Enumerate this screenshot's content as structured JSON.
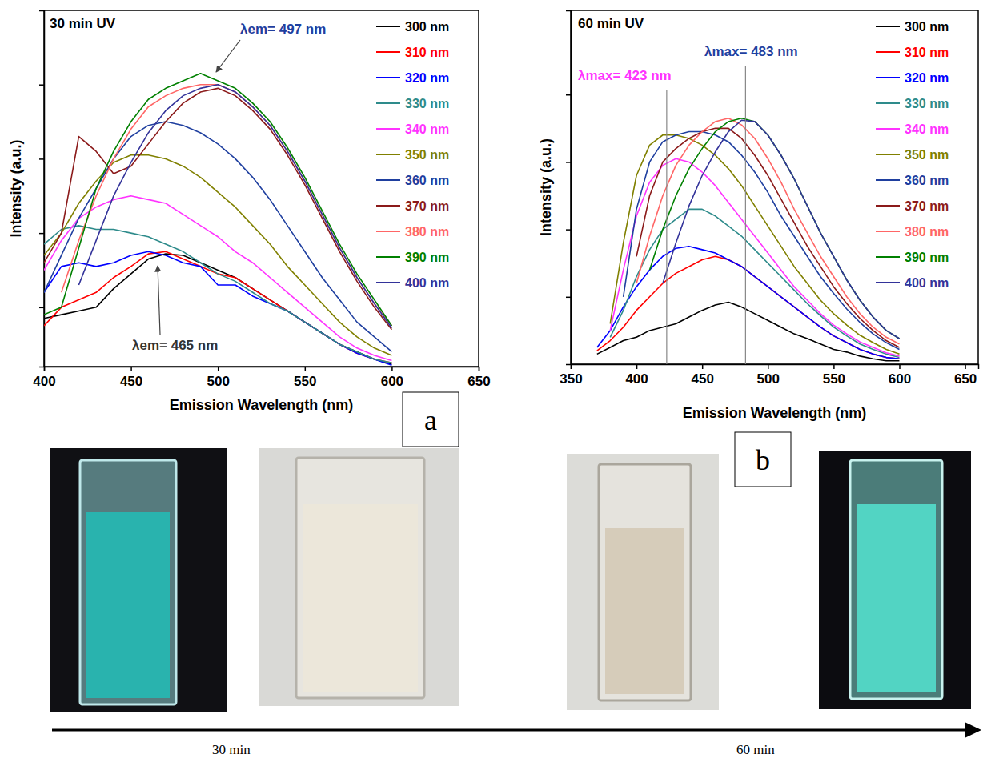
{
  "chart_data": [
    {
      "type": "line",
      "panel_label": "a",
      "x_label": "Emission Wavelength (nm)",
      "y_label": "Intensity (a.u.)",
      "xlim": [
        400,
        650
      ],
      "xticks": [
        400,
        450,
        500,
        550,
        600,
        650
      ],
      "ylim": [
        0.2,
        5
      ],
      "yticks": [
        1,
        2,
        3,
        4
      ],
      "tick_labels": "x",
      "legend": "upper right",
      "annotations": [
        {
          "text": "30 min UV"
        },
        {
          "text": "λem= 497 nm",
          "color": "#1f3f9f"
        },
        {
          "text": "λem= 465 nm",
          "color": "#333333"
        }
      ],
      "x": [
        400,
        410,
        420,
        430,
        440,
        450,
        460,
        470,
        480,
        490,
        500,
        510,
        520,
        530,
        540,
        550,
        560,
        570,
        580,
        590,
        600
      ],
      "series": [
        {
          "name": "300 nm",
          "color": "#000000",
          "values": [
            0.85,
            0.9,
            0.95,
            1.0,
            1.25,
            1.45,
            1.65,
            1.72,
            1.7,
            1.6,
            1.5,
            1.4,
            1.25,
            1.1,
            0.95,
            0.8,
            0.65,
            0.5,
            0.4,
            0.3,
            0.23
          ]
        },
        {
          "name": "310 nm",
          "color": "#ff0000",
          "values": [
            0.75,
            1.0,
            1.1,
            1.2,
            1.4,
            1.55,
            1.72,
            1.75,
            1.65,
            1.55,
            1.45,
            1.4,
            1.25,
            1.1,
            0.95,
            0.8,
            0.65,
            0.5,
            0.38,
            0.3,
            0.25
          ]
        },
        {
          "name": "320 nm",
          "color": "#0000ff",
          "values": [
            1.2,
            1.55,
            1.6,
            1.55,
            1.6,
            1.7,
            1.75,
            1.7,
            1.6,
            1.55,
            1.3,
            1.3,
            1.15,
            1.05,
            0.95,
            0.8,
            0.65,
            0.5,
            0.38,
            0.3,
            0.22
          ]
        },
        {
          "name": "330 nm",
          "color": "#2e8b8b",
          "values": [
            1.85,
            2.05,
            2.1,
            2.05,
            2.05,
            2.0,
            1.95,
            1.85,
            1.75,
            1.6,
            1.45,
            1.35,
            1.2,
            1.05,
            0.95,
            0.8,
            0.65,
            0.5,
            0.4,
            0.3,
            0.25
          ]
        },
        {
          "name": "340 nm",
          "color": "#ff33ff",
          "values": [
            1.5,
            1.9,
            2.2,
            2.35,
            2.45,
            2.5,
            2.45,
            2.4,
            2.25,
            2.1,
            1.95,
            1.75,
            1.6,
            1.4,
            1.2,
            1.0,
            0.8,
            0.6,
            0.45,
            0.35,
            0.28
          ]
        },
        {
          "name": "350 nm",
          "color": "#808000",
          "values": [
            1.7,
            2.0,
            2.4,
            2.7,
            2.95,
            3.05,
            3.05,
            3.0,
            2.9,
            2.75,
            2.55,
            2.35,
            2.1,
            1.85,
            1.55,
            1.3,
            1.05,
            0.8,
            0.6,
            0.45,
            0.35
          ]
        },
        {
          "name": "360 nm",
          "color": "#1f3f9f",
          "values": [
            1.2,
            1.7,
            2.2,
            2.6,
            3.0,
            3.3,
            3.45,
            3.5,
            3.45,
            3.35,
            3.2,
            3.0,
            2.75,
            2.45,
            2.1,
            1.75,
            1.4,
            1.1,
            0.8,
            0.6,
            0.4
          ]
        },
        {
          "name": "370 nm",
          "color": "#8b1a1a",
          "values": [
            1.6,
            2.0,
            3.3,
            3.1,
            2.8,
            2.9,
            3.2,
            3.5,
            3.75,
            3.9,
            3.95,
            3.85,
            3.65,
            3.4,
            3.05,
            2.65,
            2.2,
            1.75,
            1.35,
            1.0,
            0.7
          ]
        },
        {
          "name": "380 nm",
          "color": "#ff6666",
          "values": [
            null,
            1.2,
            1.9,
            2.5,
            3.0,
            3.4,
            3.7,
            3.85,
            3.95,
            4.0,
            4.0,
            3.9,
            3.7,
            3.45,
            3.1,
            2.7,
            2.25,
            1.8,
            1.4,
            1.05,
            0.75
          ]
        },
        {
          "name": "390 nm",
          "color": "#008000",
          "values": [
            0.9,
            1.0,
            1.8,
            2.6,
            3.1,
            3.5,
            3.8,
            3.95,
            4.05,
            4.15,
            4.05,
            3.95,
            3.75,
            3.5,
            3.15,
            2.75,
            2.3,
            1.85,
            1.45,
            1.1,
            0.75
          ]
        },
        {
          "name": "400 nm",
          "color": "#33339a",
          "values": [
            null,
            null,
            1.3,
            1.9,
            2.5,
            2.95,
            3.35,
            3.65,
            3.85,
            3.95,
            4.0,
            3.9,
            3.7,
            3.45,
            3.1,
            2.7,
            2.25,
            1.8,
            1.4,
            1.05,
            0.72
          ]
        }
      ]
    },
    {
      "type": "line",
      "panel_label": "b",
      "x_label": "Emission Wavelength (nm)",
      "y_label": "Intensity (a.u.)",
      "xlim": [
        350,
        660
      ],
      "xticks": [
        350,
        400,
        450,
        500,
        550,
        600,
        650
      ],
      "ylim": [
        0,
        5.25
      ],
      "yticks": [
        1,
        2,
        3,
        4
      ],
      "tick_labels": "x",
      "legend": "upper right",
      "annotations": [
        {
          "text": "60 min UV"
        },
        {
          "text": "λmax= 423 nm",
          "x": 423,
          "color": "#ff33ff"
        },
        {
          "text": "λmax= 483 nm",
          "x": 483,
          "color": "#1f3f9f"
        }
      ],
      "x": [
        370,
        380,
        390,
        400,
        410,
        420,
        430,
        440,
        450,
        460,
        470,
        480,
        490,
        500,
        510,
        520,
        530,
        540,
        550,
        560,
        570,
        580,
        590,
        600
      ],
      "series": [
        {
          "name": "300 nm",
          "color": "#000000",
          "values": [
            0.15,
            0.25,
            0.35,
            0.4,
            0.5,
            0.55,
            0.6,
            0.7,
            0.8,
            0.88,
            0.92,
            0.85,
            0.75,
            0.65,
            0.55,
            0.45,
            0.38,
            0.3,
            0.22,
            0.18,
            0.12,
            0.08,
            0.05,
            0.05
          ]
        },
        {
          "name": "310 nm",
          "color": "#ff0000",
          "values": [
            0.2,
            0.35,
            0.55,
            0.8,
            1.0,
            1.2,
            1.35,
            1.45,
            1.55,
            1.6,
            1.55,
            1.45,
            1.3,
            1.15,
            1.0,
            0.85,
            0.7,
            0.55,
            0.42,
            0.32,
            0.22,
            0.15,
            0.1,
            0.08
          ]
        },
        {
          "name": "320 nm",
          "color": "#0000ff",
          "values": [
            0.25,
            0.5,
            0.85,
            1.15,
            1.4,
            1.6,
            1.72,
            1.75,
            1.7,
            1.65,
            1.55,
            1.45,
            1.3,
            1.15,
            1.0,
            0.85,
            0.7,
            0.55,
            0.42,
            0.32,
            0.22,
            0.15,
            0.1,
            0.08
          ]
        },
        {
          "name": "330 nm",
          "color": "#2e8b8b",
          "values": [
            null,
            0.4,
            0.8,
            1.3,
            1.7,
            2.0,
            2.15,
            2.3,
            2.3,
            2.2,
            2.05,
            1.9,
            1.7,
            1.5,
            1.3,
            1.1,
            0.9,
            0.72,
            0.55,
            0.42,
            0.3,
            0.22,
            0.15,
            0.1
          ]
        },
        {
          "name": "340 nm",
          "color": "#ff33ff",
          "values": [
            null,
            0.5,
            1.4,
            2.2,
            2.7,
            2.95,
            3.05,
            3.0,
            2.85,
            2.65,
            2.4,
            2.15,
            1.9,
            1.65,
            1.4,
            1.15,
            0.95,
            0.75,
            0.58,
            0.45,
            0.33,
            0.25,
            0.17,
            0.12
          ]
        },
        {
          "name": "350 nm",
          "color": "#808000",
          "values": [
            null,
            0.6,
            1.8,
            2.8,
            3.25,
            3.4,
            3.4,
            3.35,
            3.25,
            3.1,
            2.9,
            2.65,
            2.35,
            2.05,
            1.75,
            1.45,
            1.2,
            0.95,
            0.75,
            0.58,
            0.43,
            0.32,
            0.22,
            0.15
          ]
        },
        {
          "name": "360 nm",
          "color": "#1f3f9f",
          "values": [
            null,
            null,
            1.0,
            2.3,
            3.0,
            3.3,
            3.4,
            3.45,
            3.45,
            3.4,
            3.3,
            3.1,
            2.85,
            2.55,
            2.2,
            1.9,
            1.6,
            1.3,
            1.05,
            0.82,
            0.62,
            0.45,
            0.32,
            0.22
          ]
        },
        {
          "name": "370 nm",
          "color": "#8b1a1a",
          "values": [
            null,
            null,
            null,
            1.6,
            2.5,
            3.0,
            3.2,
            3.35,
            3.45,
            3.5,
            3.5,
            3.35,
            3.1,
            2.8,
            2.45,
            2.1,
            1.75,
            1.45,
            1.15,
            0.9,
            0.68,
            0.5,
            0.35,
            0.25
          ]
        },
        {
          "name": "380 nm",
          "color": "#ff6666",
          "values": [
            null,
            null,
            null,
            1.2,
            1.9,
            2.5,
            2.95,
            3.25,
            3.45,
            3.6,
            3.65,
            3.55,
            3.35,
            3.05,
            2.7,
            2.3,
            1.95,
            1.6,
            1.3,
            1.0,
            0.75,
            0.55,
            0.4,
            0.3
          ]
        },
        {
          "name": "390 nm",
          "color": "#008000",
          "values": [
            null,
            null,
            null,
            null,
            1.4,
            2.0,
            2.5,
            2.9,
            3.2,
            3.45,
            3.6,
            3.65,
            3.6,
            3.4,
            3.1,
            2.75,
            2.35,
            1.95,
            1.6,
            1.25,
            0.95,
            0.7,
            0.5,
            0.38
          ]
        },
        {
          "name": "400 nm",
          "color": "#33339a",
          "values": [
            null,
            null,
            null,
            null,
            null,
            1.2,
            1.8,
            2.35,
            2.8,
            3.15,
            3.45,
            3.62,
            3.6,
            3.4,
            3.1,
            2.75,
            2.35,
            1.95,
            1.6,
            1.25,
            0.95,
            0.7,
            0.5,
            0.38
          ]
        }
      ]
    }
  ],
  "timeline": {
    "labels": [
      "30 min",
      "60 min"
    ]
  }
}
